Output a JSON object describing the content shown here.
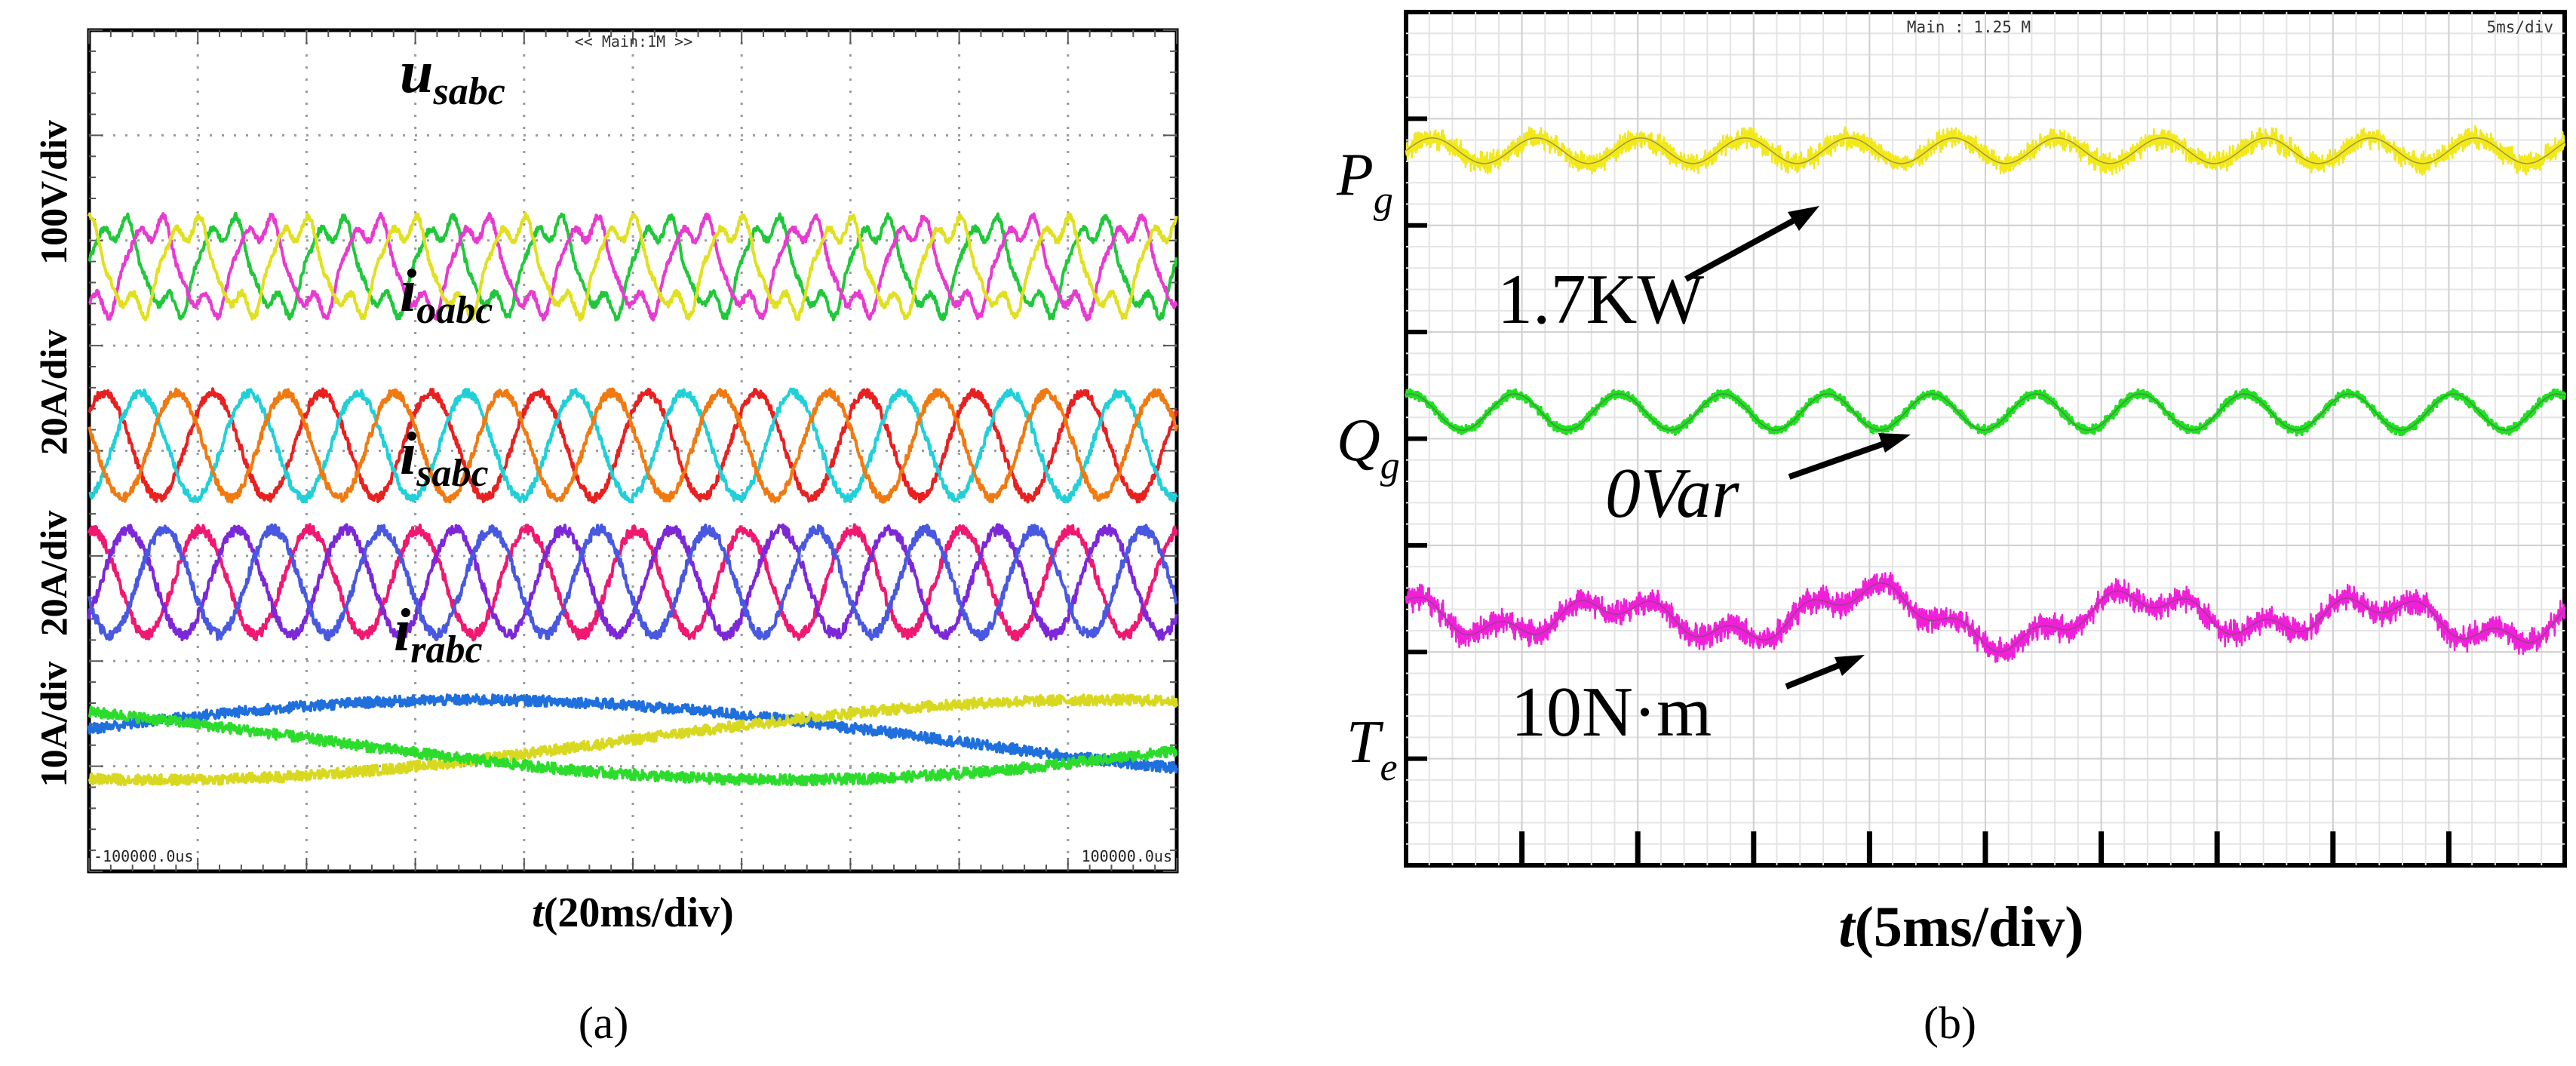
{
  "chart_data": [
    {
      "type": "line",
      "panel_label": "(a)",
      "title": "",
      "header_text": "<< Main:1M >>",
      "xlabel": {
        "t": "t",
        "rest": "(20ms/div)"
      },
      "x_range": [
        -100,
        100
      ],
      "x_unit": "ms",
      "xaxis_start_text": "-100000.0us",
      "xaxis_end_text": "100000.0us",
      "grid": true,
      "legend": "none",
      "divisions": {
        "x": 10,
        "y": 8
      },
      "channels": [
        {
          "scale_label": "100V/div",
          "name": {
            "base": "u",
            "sub": "sabc"
          },
          "waveform": "distorted-sine",
          "amplitude_div": 0.5,
          "center_div": 5.75,
          "frequency_hz": 50,
          "phases": [
            "a",
            "b",
            "c"
          ],
          "colors": [
            "#1fc83a",
            "#e83ad0",
            "#e0e020"
          ],
          "noise": 0.03
        },
        {
          "scale_label": "20A/div",
          "name": {
            "base": "i",
            "sub": "oabc"
          },
          "waveform": "sine",
          "amplitude_div": 0.5,
          "center_div": 4.05,
          "frequency_hz": 50,
          "phases": [
            "a",
            "b",
            "c"
          ],
          "colors": [
            "#e82020",
            "#20d0d8",
            "#f07a10"
          ],
          "noise": 0.04
        },
        {
          "scale_label": "20A/div",
          "name": {
            "base": "i",
            "sub": "sabc"
          },
          "waveform": "sine",
          "amplitude_div": 0.5,
          "center_div": 2.75,
          "frequency_hz": 50,
          "phases": [
            "a",
            "b",
            "c"
          ],
          "colors": [
            "#f01870",
            "#7d28d8",
            "#4858e0"
          ],
          "noise": 0.05
        },
        {
          "scale_label": "10A/div",
          "name": {
            "base": "i",
            "sub": "rabc"
          },
          "waveform": "sine",
          "amplitude_div": 0.38,
          "center_div": 1.25,
          "frequency_hz": 2.9,
          "phases": [
            "a",
            "b",
            "c"
          ],
          "colors": [
            "#1f6fdd",
            "#d8d820",
            "#2cdc2c"
          ],
          "noise": 0.05
        }
      ]
    },
    {
      "type": "line",
      "panel_label": "(b)",
      "title": "",
      "header_text": "Main : 1.25 M",
      "header_right_text": "5ms/div",
      "xlabel": {
        "t": "t",
        "rest": "(5ms/div)"
      },
      "x_range": [
        0,
        50
      ],
      "x_unit": "ms",
      "grid": true,
      "legend": "none",
      "divisions": {
        "x": 10,
        "y": 8
      },
      "series": [
        {
          "label": {
            "base": "P",
            "sub": "g"
          },
          "annotation": "1.7KW",
          "color": "#f2e81a",
          "center_div": 6.7,
          "ripple_div": 0.12,
          "ripple_period_ms": 4.5,
          "noise_div": 0.1
        },
        {
          "label": {
            "base": "Q",
            "sub": "g"
          },
          "annotation": "0Var",
          "color": "#20e020",
          "center_div": 4.25,
          "ripple_div": 0.17,
          "ripple_period_ms": 4.5,
          "noise_div": 0.04
        },
        {
          "label": {
            "base": "T",
            "sub": "e"
          },
          "annotation": "10N·m",
          "color": "#f020d8",
          "center_div": 2.33,
          "ripple_div": 0.18,
          "ripple_period_ms": 11,
          "noise_div": 0.12
        }
      ]
    }
  ]
}
